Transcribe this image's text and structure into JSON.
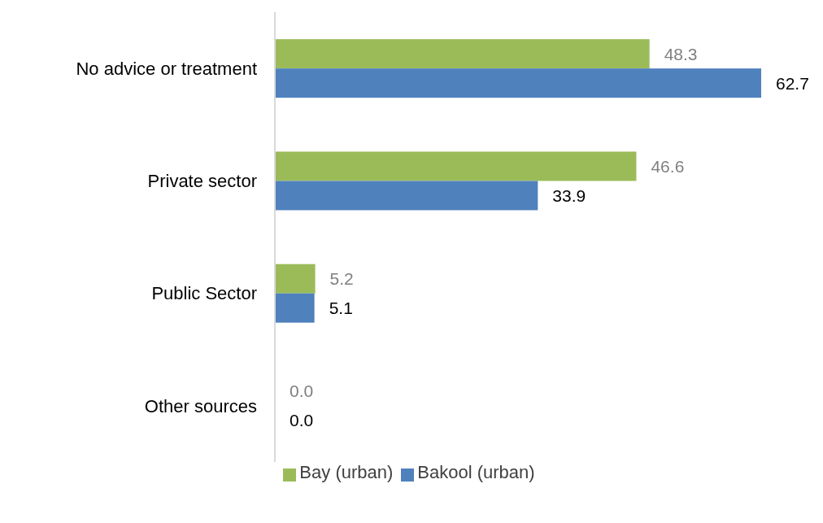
{
  "chart_data": {
    "type": "bar",
    "orientation": "horizontal",
    "categories": [
      "No advice or treatment",
      "Private sector",
      "Public Sector",
      "Other sources"
    ],
    "series": [
      {
        "name": "Bay (urban)",
        "color": "#9bbb59",
        "values": [
          48.3,
          46.6,
          5.2,
          0
        ],
        "value_labels": [
          "48.3",
          "46.6",
          "5.2",
          "0.0"
        ]
      },
      {
        "name": "Bakool (urban)",
        "color": "#4f81bd",
        "values": [
          62.7,
          33.9,
          5.1,
          0
        ],
        "value_labels": [
          "62.7",
          "33.9",
          "5.1",
          "0.0"
        ]
      }
    ],
    "legend": "bottom"
  }
}
